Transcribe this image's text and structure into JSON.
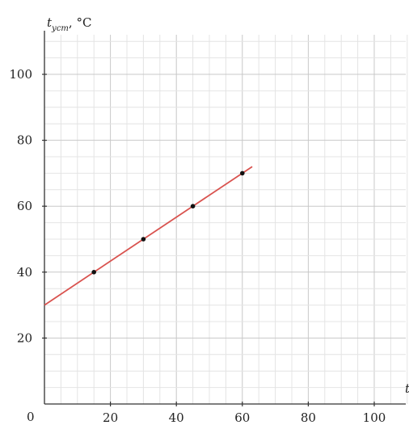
{
  "chart_data": {
    "type": "scatter",
    "title": "",
    "ylabel_symbol": "t",
    "ylabel_subscript": "уст",
    "ylabel_unit": ", °C",
    "xlabel": "t",
    "origin_label": "0",
    "xlim": [
      0,
      110
    ],
    "ylim": [
      0,
      110
    ],
    "x_ticks": [
      "20",
      "40",
      "60",
      "80",
      "100"
    ],
    "y_ticks": [
      "20",
      "40",
      "60",
      "80",
      "100"
    ],
    "grid": true,
    "series": [
      {
        "x": [
          15,
          30,
          45,
          60
        ],
        "y": [
          40,
          50,
          60,
          70
        ],
        "color": "#111111"
      }
    ],
    "fit_line": {
      "x": [
        0,
        63
      ],
      "y": [
        30,
        72
      ],
      "color": "#d9534f"
    }
  }
}
